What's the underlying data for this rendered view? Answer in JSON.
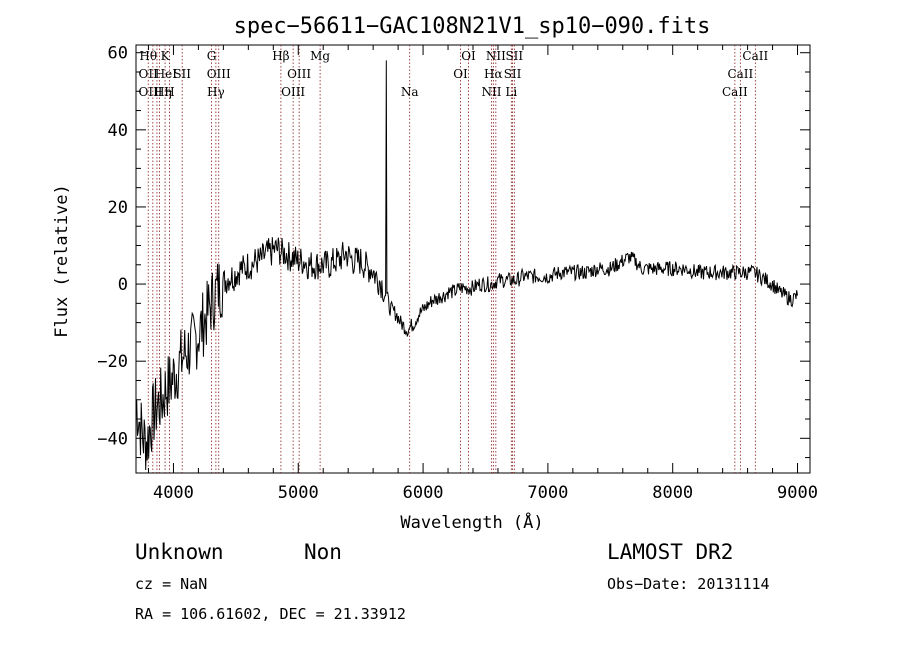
{
  "chart_data": {
    "type": "line",
    "title": "spec−56611−GAC108N21V1_sp10−090.fits",
    "xlabel": "Wavelength (Å)",
    "ylabel": "Flux (relative)",
    "xlim": [
      3700,
      9100
    ],
    "ylim": [
      -49,
      62
    ],
    "x_ticks": [
      "4000",
      "5000",
      "6000",
      "7000",
      "8000",
      "9000"
    ],
    "y_ticks": [
      "−40",
      "−20",
      "0",
      "20",
      "40",
      "60"
    ],
    "grid": false,
    "series": [
      {
        "points": [
          [
            3700,
            -30
          ],
          [
            3730,
            -36
          ],
          [
            3760,
            -40
          ],
          [
            3790,
            -41
          ],
          [
            3820,
            -36
          ],
          [
            3850,
            -33
          ],
          [
            3880,
            -31
          ],
          [
            3910,
            -30
          ],
          [
            3940,
            -27
          ],
          [
            3970,
            -26
          ],
          [
            4000,
            -24
          ],
          [
            4030,
            -22
          ],
          [
            4060,
            -20
          ],
          [
            4090,
            -18
          ],
          [
            4120,
            -17
          ],
          [
            4150,
            -16
          ],
          [
            4180,
            -14
          ],
          [
            4210,
            -12
          ],
          [
            4240,
            -10
          ],
          [
            4270,
            -8
          ],
          [
            4300,
            -5
          ],
          [
            4330,
            -3
          ],
          [
            4360,
            -1
          ],
          [
            4390,
            0
          ],
          [
            4420,
            1
          ],
          [
            4450,
            2
          ],
          [
            4480,
            2
          ],
          [
            4510,
            3
          ],
          [
            4540,
            4
          ],
          [
            4570,
            4
          ],
          [
            4600,
            5
          ],
          [
            4630,
            5
          ],
          [
            4660,
            6
          ],
          [
            4690,
            6
          ],
          [
            4720,
            7
          ],
          [
            4750,
            8
          ],
          [
            4780,
            8
          ],
          [
            4810,
            9
          ],
          [
            4840,
            9
          ],
          [
            4870,
            8
          ],
          [
            4900,
            8
          ],
          [
            4930,
            7
          ],
          [
            4960,
            7
          ],
          [
            4990,
            6
          ],
          [
            5020,
            6
          ],
          [
            5050,
            6
          ],
          [
            5080,
            5
          ],
          [
            5110,
            5
          ],
          [
            5140,
            5
          ],
          [
            5170,
            5
          ],
          [
            5200,
            5
          ],
          [
            5230,
            5
          ],
          [
            5260,
            5
          ],
          [
            5290,
            6
          ],
          [
            5320,
            6
          ],
          [
            5350,
            7
          ],
          [
            5380,
            8
          ],
          [
            5410,
            7
          ],
          [
            5440,
            6
          ],
          [
            5470,
            6
          ],
          [
            5500,
            6
          ],
          [
            5530,
            5
          ],
          [
            5560,
            4
          ],
          [
            5590,
            4
          ],
          [
            5620,
            2
          ],
          [
            5650,
            1
          ],
          [
            5670,
            0
          ],
          [
            5690,
            -2
          ],
          [
            5700,
            -3
          ],
          [
            5705,
            58
          ],
          [
            5710,
            -3
          ],
          [
            5730,
            -6
          ],
          [
            5760,
            -7
          ],
          [
            5790,
            -8
          ],
          [
            5820,
            -10
          ],
          [
            5850,
            -11
          ],
          [
            5880,
            -12
          ],
          [
            5900,
            -11
          ],
          [
            5930,
            -10
          ],
          [
            5960,
            -8
          ],
          [
            5990,
            -7
          ],
          [
            6020,
            -6
          ],
          [
            6050,
            -5
          ],
          [
            6080,
            -4
          ],
          [
            6110,
            -4
          ],
          [
            6140,
            -3
          ],
          [
            6170,
            -3
          ],
          [
            6200,
            -2
          ],
          [
            6250,
            -2
          ],
          [
            6300,
            -1
          ],
          [
            6350,
            -1
          ],
          [
            6400,
            -1
          ],
          [
            6450,
            0
          ],
          [
            6500,
            0
          ],
          [
            6550,
            0
          ],
          [
            6600,
            1
          ],
          [
            6650,
            1
          ],
          [
            6700,
            1
          ],
          [
            6750,
            1
          ],
          [
            6800,
            2
          ],
          [
            6900,
            2
          ],
          [
            7000,
            2
          ],
          [
            7100,
            3
          ],
          [
            7200,
            3
          ],
          [
            7300,
            3
          ],
          [
            7400,
            4
          ],
          [
            7500,
            4
          ],
          [
            7600,
            6
          ],
          [
            7650,
            7
          ],
          [
            7700,
            6
          ],
          [
            7750,
            4
          ],
          [
            7800,
            4
          ],
          [
            7900,
            4
          ],
          [
            8000,
            4
          ],
          [
            8100,
            4
          ],
          [
            8200,
            3
          ],
          [
            8300,
            3
          ],
          [
            8400,
            3
          ],
          [
            8500,
            3
          ],
          [
            8600,
            3
          ],
          [
            8650,
            3
          ],
          [
            8700,
            2
          ],
          [
            8750,
            1
          ],
          [
            8800,
            0
          ],
          [
            8850,
            -2
          ],
          [
            8900,
            -3
          ],
          [
            8950,
            -4
          ],
          [
            9000,
            -3
          ]
        ]
      }
    ],
    "lines": [
      {
        "w": 3798,
        "name": "Hθ",
        "row": 1
      },
      {
        "w": 3835,
        "name": "",
        "row": 1
      },
      {
        "w": 3868,
        "name": "",
        "row": 1
      },
      {
        "w": 3889,
        "name": "",
        "row": 1
      },
      {
        "w": 3933,
        "name": "K",
        "row": 1
      },
      {
        "w": 3968,
        "name": "H",
        "row": 3
      },
      {
        "w": 4070,
        "name": "SII",
        "row": 2
      },
      {
        "w": 4305,
        "name": "G",
        "row": 1
      },
      {
        "w": 4340,
        "name": "Hγ",
        "row": 3
      },
      {
        "w": 4363,
        "name": "OIII",
        "row": 2
      },
      {
        "w": 4861,
        "name": "Hβ",
        "row": 1
      },
      {
        "w": 4959,
        "name": "OIII",
        "row": 3
      },
      {
        "w": 5007,
        "name": "OIII",
        "row": 2
      },
      {
        "w": 5175,
        "name": "Mg",
        "row": 1
      },
      {
        "w": 5893,
        "name": "Na",
        "row": 3
      },
      {
        "w": 6300,
        "name": "OI",
        "row": 2
      },
      {
        "w": 6364,
        "name": "OI",
        "row": 1
      },
      {
        "w": 6548,
        "name": "NII",
        "row": 3
      },
      {
        "w": 6563,
        "name": "Hα",
        "row": 2
      },
      {
        "w": 6583,
        "name": "NII",
        "row": 1
      },
      {
        "w": 6707,
        "name": "Li",
        "row": 3
      },
      {
        "w": 6717,
        "name": "SII",
        "row": 2
      },
      {
        "w": 6731,
        "name": "SII",
        "row": 1
      },
      {
        "w": 8498,
        "name": "CaII",
        "row": 3
      },
      {
        "w": 8542,
        "name": "CaII",
        "row": 2
      },
      {
        "w": 8662,
        "name": "CaII",
        "row": 1
      }
    ],
    "line_labels_extra": [
      {
        "text": "OII",
        "x": 3720,
        "row": 2
      },
      {
        "text": "OIII",
        "x": 3720,
        "row": 3
      },
      {
        "text": "HeI",
        "x": 3850,
        "row": 2
      },
      {
        "text": "Hη",
        "x": 3845,
        "row": 3
      }
    ]
  },
  "info": {
    "class": "Unknown",
    "subclass": "Non",
    "survey": "LAMOST DR2",
    "cz": "cz = NaN",
    "obs_date": "Obs−Date: 20131114",
    "radec": "RA = 106.61602, DEC =  21.33912"
  }
}
